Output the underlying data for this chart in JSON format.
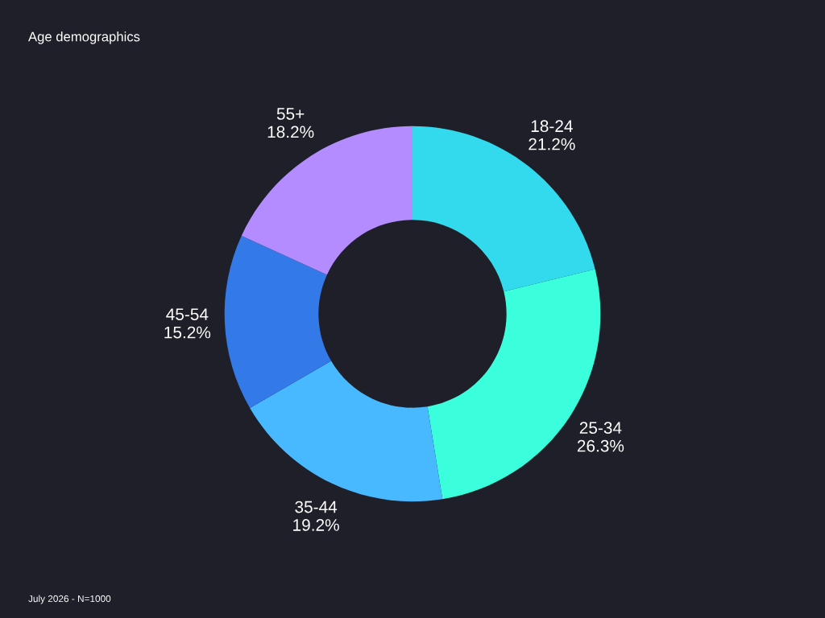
{
  "chart_data": {
    "type": "donut",
    "title": "Age demographics",
    "categories": [
      "18-24",
      "25-34",
      "35-44",
      "45-54",
      "55+"
    ],
    "values": [
      21.2,
      26.3,
      19.2,
      15.2,
      18.2
    ],
    "value_labels": [
      "21.2%",
      "26.3%",
      "19.2%",
      "15.2%",
      "18.2%"
    ],
    "colors": [
      "#33d9ec",
      "#3bffdc",
      "#48b8ff",
      "#3479e8",
      "#b48cff"
    ],
    "annotations": [
      "July 2026 - N=1000"
    ],
    "legend": false
  }
}
